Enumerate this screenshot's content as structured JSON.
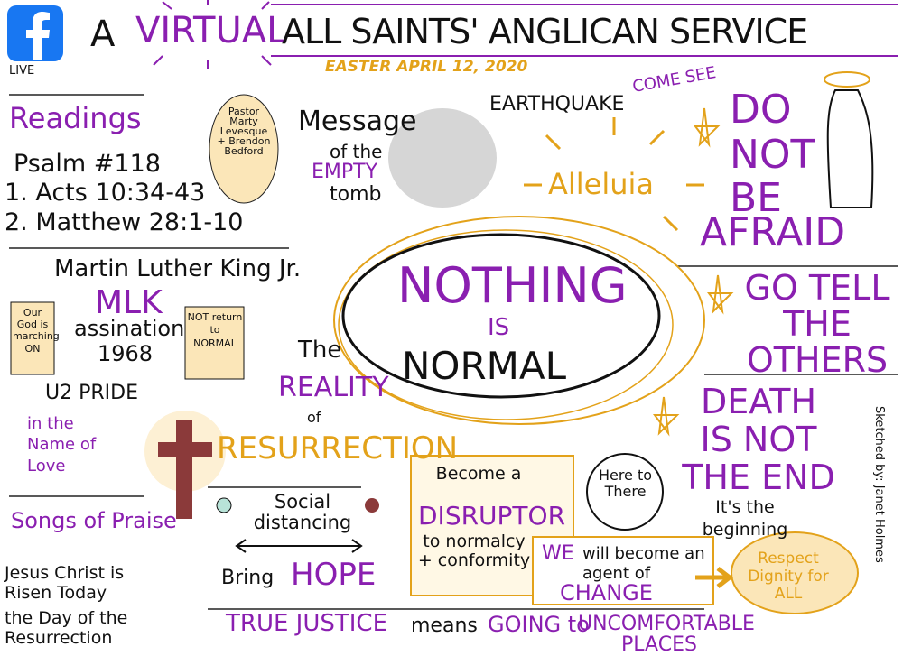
{
  "header": {
    "live": "LIVE",
    "a": "A",
    "virtual": "VIRTUAL",
    "service": "ALL SAINTS' ANGLICAN SERVICE",
    "date": "EASTER APRIL 12, 2020"
  },
  "readings": {
    "title": "Readings",
    "items": [
      "Psalm #118",
      "1. Acts 10:34-43",
      "2. Matthew 28:1-10"
    ]
  },
  "pastors": "Pastor Marty Levesque + Brendon Bedford",
  "message": [
    "Message",
    "of the",
    "EMPTY",
    "tomb"
  ],
  "earthquake": "EARTHQUAKE",
  "come_see": "COME SEE",
  "alleluia": "Alleluia",
  "do_not_be_afraid": [
    "DO",
    "NOT",
    "BE",
    "AFRAID"
  ],
  "mlk": {
    "name": "Martin Luther King Jr.",
    "abbr": "MLK",
    "event": "assination",
    "year": "1968",
    "scroll_left": "Our God is marching ON",
    "scroll_right": "NOT return to NORMAL"
  },
  "music": {
    "pride": "U2 PRIDE",
    "name_of_love": "in the Name of Love"
  },
  "reality": [
    "The",
    "REALITY",
    "of",
    "RESURRECTION"
  ],
  "center": [
    "NOTHING",
    "IS",
    "NORMAL"
  ],
  "go_tell": "GO TELL THE OTHERS",
  "death": "DEATH IS NOT THE END",
  "beginning": "It's the beginning",
  "credit": "Sketched by: Janet Holmes",
  "songs": {
    "title": "Songs of Praise",
    "items": [
      "Jesus Christ is Risen Today",
      "the Day of the Resurrection"
    ]
  },
  "social": [
    "Social distancing",
    "Bring",
    "HOPE"
  ],
  "disruptor": [
    "Become a",
    "DISRUPTOR",
    "to normalcy + conformity"
  ],
  "here_there": "Here to There",
  "change": [
    "WE",
    "will become an agent of",
    "CHANGE"
  ],
  "respect": "Respect Dignity for ALL",
  "justice": [
    "TRUE JUSTICE",
    "means",
    "GOING to",
    "UNCOMFORTABLE PLACES"
  ]
}
